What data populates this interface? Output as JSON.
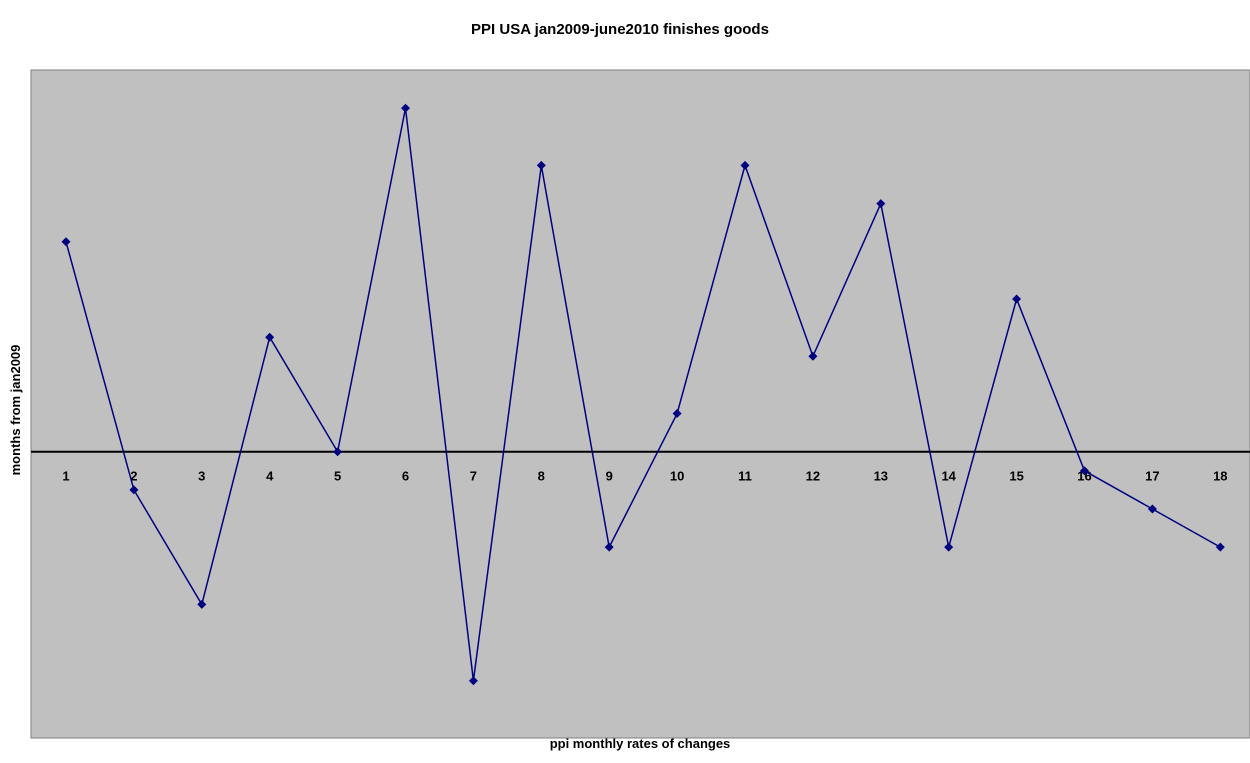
{
  "chart_data": {
    "type": "line",
    "title": "PPI USA jan2009-june2010 finishes goods",
    "xlabel": "ppi monthly rates of changes",
    "ylabel": "months from jan2009",
    "categories": [
      "1",
      "2",
      "3",
      "4",
      "5",
      "6",
      "7",
      "8",
      "9",
      "10",
      "11",
      "12",
      "13",
      "14",
      "15",
      "16",
      "17",
      "18"
    ],
    "series": [
      {
        "values": [
          1.1,
          -0.2,
          -0.8,
          0.6,
          0.0,
          1.8,
          -1.2,
          1.5,
          -0.5,
          0.2,
          1.5,
          0.5,
          1.3,
          -0.5,
          0.8,
          -0.1,
          -0.3,
          -0.5
        ]
      }
    ],
    "ylim": [
      -1.5,
      2.0
    ],
    "grid": false,
    "legend": "none",
    "colors": {
      "plot_background": "#c0c0c0",
      "line": "#000080",
      "marker": "#000080",
      "zero_line": "#000000",
      "plot_border": "#808080"
    }
  }
}
